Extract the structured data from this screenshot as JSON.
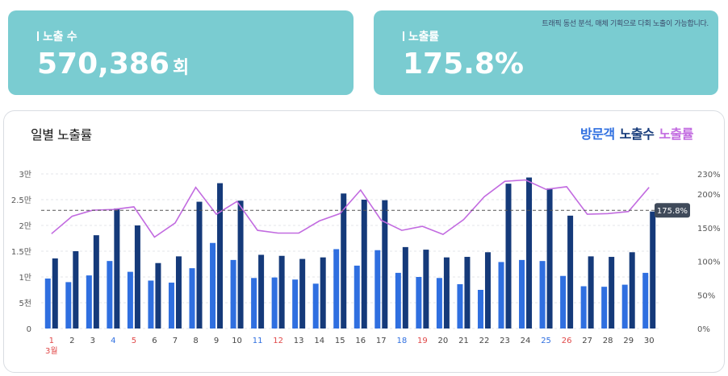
{
  "kpis": {
    "exposure": {
      "label": "노출 수",
      "value": "570,386",
      "unit": "회"
    },
    "rate": {
      "label": "노출률",
      "value": "175.8%",
      "note": "트래픽 동선 분석, 매체 기획으로 다회 노출이 가능합니다."
    }
  },
  "panel": {
    "title": "일별 노출률"
  },
  "colors": {
    "visitors": "#2f6fe0",
    "exposures": "#153a7a",
    "rate": "#c26be0",
    "kpi_bg": "#7accd1",
    "weekend_red": "#e04848",
    "weekend_blue": "#2f6fe0"
  },
  "chart_data": {
    "type": "bar",
    "legend": [
      "방문객",
      "노출수",
      "노출률"
    ],
    "categories": [
      "1",
      "2",
      "3",
      "4",
      "5",
      "6",
      "7",
      "8",
      "9",
      "10",
      "11",
      "12",
      "13",
      "14",
      "15",
      "16",
      "17",
      "18",
      "19",
      "20",
      "21",
      "22",
      "23",
      "24",
      "25",
      "26",
      "27",
      "28",
      "29",
      "30"
    ],
    "category_colors": [
      "red",
      "default",
      "default",
      "blue",
      "red",
      "default",
      "default",
      "default",
      "default",
      "default",
      "blue",
      "red",
      "default",
      "default",
      "default",
      "default",
      "default",
      "blue",
      "red",
      "default",
      "default",
      "default",
      "default",
      "default",
      "blue",
      "red",
      "default",
      "default",
      "default",
      "default"
    ],
    "month_label": "3월",
    "y_left": {
      "ticks": [
        "0",
        "5천",
        "1만",
        "1.5만",
        "2만",
        "2.5만",
        "3만"
      ],
      "range": [
        0,
        30000
      ]
    },
    "y_right": {
      "ticks": [
        "0%",
        "50%",
        "100%",
        "150%",
        "200%",
        "230%"
      ],
      "range": [
        0,
        230
      ]
    },
    "reference_line": {
      "value": 175.8,
      "label": "175.8%"
    },
    "series": [
      {
        "name": "방문객",
        "type": "bar",
        "values": [
          9700,
          9000,
          10300,
          13100,
          11000,
          9300,
          8900,
          11700,
          16600,
          13300,
          9800,
          9900,
          9500,
          8700,
          15400,
          12200,
          15200,
          10800,
          10000,
          9800,
          8600,
          7500,
          12900,
          13300,
          13100,
          10200,
          8200,
          8100,
          8500,
          10800
        ]
      },
      {
        "name": "노출수",
        "type": "bar",
        "values": [
          13600,
          15000,
          18100,
          23300,
          20000,
          12700,
          14000,
          24600,
          28200,
          24800,
          14300,
          14100,
          13500,
          13800,
          26200,
          25000,
          24900,
          15800,
          15300,
          13800,
          13900,
          14800,
          28100,
          29300,
          27200,
          21900,
          14000,
          13900,
          14800,
          22700
        ]
      },
      {
        "name": "노출률",
        "type": "line",
        "values": [
          141,
          167,
          176,
          177,
          181,
          136,
          157,
          210,
          170,
          189,
          146,
          142,
          142,
          160,
          171,
          206,
          161,
          146,
          152,
          140,
          162,
          196,
          219,
          221,
          207,
          211,
          170,
          171,
          174,
          210
        ]
      }
    ]
  }
}
